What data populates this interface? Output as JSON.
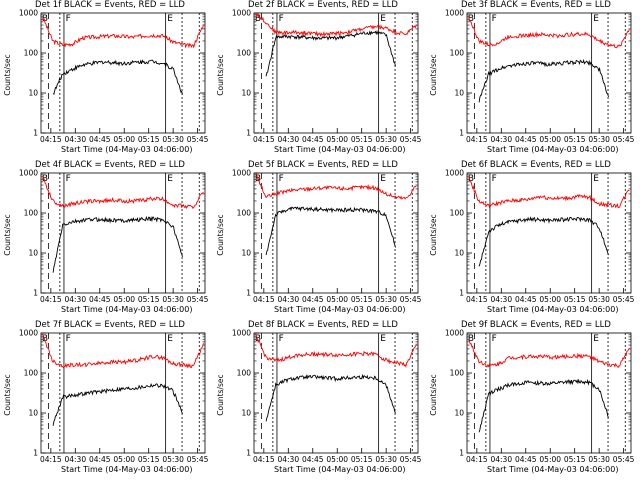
{
  "chart_data": [
    {
      "type": "line",
      "title": "Det 1f BLACK = Events, RED = LLD",
      "xlabel": "Start Time (04-May-03 04:06:00)",
      "ylabel": "Counts/sec",
      "xticks": [
        "04:15",
        "04:30",
        "04:45",
        "05:00",
        "05:15",
        "05:30",
        "05:45"
      ],
      "yticks": [
        "1",
        "10",
        "100",
        "1000"
      ],
      "ylim": [
        1,
        1000
      ],
      "yscale": "log",
      "markers": [
        "B",
        "F",
        "E"
      ],
      "series": [
        {
          "name": "LLD",
          "color": "#ff0000",
          "values": [
            800,
            200,
            160,
            170,
            240,
            250,
            260,
            270,
            260,
            250,
            270,
            280,
            270,
            190,
            160,
            150,
            500
          ]
        },
        {
          "name": "Events",
          "color": "#000000",
          "values": [
            null,
            9,
            30,
            40,
            50,
            55,
            60,
            58,
            55,
            58,
            60,
            62,
            55,
            40,
            8,
            null,
            null
          ]
        }
      ]
    },
    {
      "type": "line",
      "title": "Det 2f BLACK = Events, RED = LLD",
      "xlabel": "Start Time (04-May-03 04:06:00)",
      "ylabel": "Counts/sec",
      "xticks": [
        "04:15",
        "04:30",
        "04:45",
        "05:00",
        "05:15",
        "05:30",
        "05:45"
      ],
      "yticks": [
        "1",
        "10",
        "100",
        "1000"
      ],
      "ylim": [
        1,
        1000
      ],
      "yscale": "log",
      "markers": [
        "B",
        "F",
        "E"
      ],
      "series": [
        {
          "name": "LLD",
          "color": "#ff0000",
          "values": [
            1000,
            600,
            330,
            320,
            330,
            320,
            300,
            300,
            310,
            330,
            370,
            420,
            460,
            420,
            330,
            300,
            500
          ]
        },
        {
          "name": "Events",
          "color": "#000000",
          "values": [
            null,
            22,
            250,
            260,
            255,
            245,
            235,
            235,
            240,
            260,
            290,
            320,
            330,
            280,
            40,
            null,
            null
          ]
        }
      ]
    },
    {
      "type": "line",
      "title": "Det 3f BLACK = Events, RED = LLD",
      "xlabel": "Start Time (04-May-03 04:06:00)",
      "ylabel": "Counts/sec",
      "xticks": [
        "04:15",
        "04:30",
        "04:45",
        "05:00",
        "05:15",
        "05:30",
        "05:45"
      ],
      "yticks": [
        "1",
        "10",
        "100",
        "1000"
      ],
      "ylim": [
        1,
        1000
      ],
      "yscale": "log",
      "markers": [
        "B",
        "F",
        "E"
      ],
      "series": [
        {
          "name": "LLD",
          "color": "#ff0000",
          "values": [
            800,
            200,
            160,
            180,
            260,
            270,
            280,
            290,
            280,
            270,
            290,
            300,
            290,
            200,
            160,
            140,
            400
          ]
        },
        {
          "name": "Events",
          "color": "#000000",
          "values": [
            null,
            6,
            30,
            40,
            48,
            52,
            56,
            55,
            52,
            55,
            58,
            60,
            58,
            40,
            7,
            null,
            null
          ]
        }
      ]
    },
    {
      "type": "line",
      "title": "Det 4f BLACK = Events, RED = LLD",
      "xlabel": "Start Time (04-May-03 04:06:00)",
      "ylabel": "Counts/sec",
      "xticks": [
        "04:15",
        "04:30",
        "04:45",
        "05:00",
        "05:15",
        "05:30",
        "05:45"
      ],
      "yticks": [
        "1",
        "10",
        "100",
        "1000"
      ],
      "ylim": [
        1,
        1000
      ],
      "yscale": "log",
      "markers": [
        "B",
        "F",
        "E"
      ],
      "series": [
        {
          "name": "LLD",
          "color": "#ff0000",
          "values": [
            800,
            200,
            150,
            170,
            190,
            200,
            200,
            210,
            200,
            200,
            210,
            230,
            220,
            160,
            150,
            140,
            350
          ]
        },
        {
          "name": "Events",
          "color": "#000000",
          "values": [
            null,
            3,
            50,
            60,
            65,
            70,
            68,
            66,
            65,
            67,
            70,
            72,
            68,
            45,
            7,
            null,
            null
          ]
        }
      ]
    },
    {
      "type": "line",
      "title": "Det 5f BLACK = Events, RED = LLD",
      "xlabel": "Start Time (04-May-03 04:06:00)",
      "ylabel": "Counts/sec",
      "xticks": [
        "04:15",
        "04:30",
        "04:45",
        "05:00",
        "05:15",
        "05:30",
        "05:45"
      ],
      "yticks": [
        "1",
        "10",
        "100",
        "1000"
      ],
      "ylim": [
        1,
        1000
      ],
      "yscale": "log",
      "markers": [
        "B",
        "F",
        "E"
      ],
      "series": [
        {
          "name": "LLD",
          "color": "#ff0000",
          "values": [
            1000,
            250,
            300,
            350,
            380,
            400,
            420,
            430,
            420,
            410,
            430,
            450,
            420,
            300,
            250,
            230,
            500
          ]
        },
        {
          "name": "Events",
          "color": "#000000",
          "values": [
            null,
            8,
            90,
            120,
            130,
            128,
            125,
            120,
            118,
            120,
            122,
            118,
            110,
            90,
            12,
            null,
            null
          ]
        }
      ]
    },
    {
      "type": "line",
      "title": "Det 6f BLACK = Events, RED = LLD",
      "xlabel": "Start Time (04-May-03 04:06:00)",
      "ylabel": "Counts/sec",
      "xticks": [
        "04:15",
        "04:30",
        "04:45",
        "05:00",
        "05:15",
        "05:30",
        "05:45"
      ],
      "yticks": [
        "1",
        "10",
        "100",
        "1000"
      ],
      "ylim": [
        1,
        1000
      ],
      "yscale": "log",
      "markers": [
        "B",
        "F",
        "E"
      ],
      "series": [
        {
          "name": "LLD",
          "color": "#ff0000",
          "values": [
            800,
            200,
            150,
            180,
            200,
            210,
            220,
            260,
            240,
            230,
            240,
            260,
            250,
            170,
            160,
            150,
            400
          ]
        },
        {
          "name": "Events",
          "color": "#000000",
          "values": [
            null,
            4,
            35,
            50,
            60,
            65,
            70,
            68,
            66,
            68,
            70,
            72,
            68,
            45,
            8,
            null,
            null
          ]
        }
      ]
    },
    {
      "type": "line",
      "title": "Det 7f BLACK = Events, RED = LLD",
      "xlabel": "Start Time (04-May-03 04:06:00)",
      "ylabel": "Counts/sec",
      "xticks": [
        "04:15",
        "04:30",
        "04:45",
        "05:00",
        "05:15",
        "05:30",
        "05:45"
      ],
      "yticks": [
        "1",
        "10",
        "100",
        "1000"
      ],
      "ylim": [
        1,
        1000
      ],
      "yscale": "log",
      "markers": [
        "B",
        "F",
        "E"
      ],
      "series": [
        {
          "name": "LLD",
          "color": "#ff0000",
          "values": [
            900,
            200,
            150,
            160,
            160,
            170,
            180,
            190,
            190,
            200,
            230,
            260,
            240,
            170,
            160,
            150,
            500
          ]
        },
        {
          "name": "Events",
          "color": "#000000",
          "values": [
            null,
            5,
            25,
            28,
            30,
            33,
            35,
            38,
            40,
            42,
            45,
            50,
            48,
            35,
            9,
            null,
            null
          ]
        }
      ]
    },
    {
      "type": "line",
      "title": "Det 8f BLACK = Events, RED = LLD",
      "xlabel": "Start Time (04-May-03 04:06:00)",
      "ylabel": "Counts/sec",
      "xticks": [
        "04:15",
        "04:30",
        "04:45",
        "05:00",
        "05:15",
        "05:30",
        "05:45"
      ],
      "yticks": [
        "1",
        "10",
        "100",
        "1000"
      ],
      "ylim": [
        1,
        1000
      ],
      "yscale": "log",
      "markers": [
        "B",
        "F",
        "E"
      ],
      "series": [
        {
          "name": "LLD",
          "color": "#ff0000",
          "values": [
            900,
            250,
            200,
            230,
            280,
            290,
            300,
            290,
            280,
            290,
            300,
            310,
            290,
            210,
            180,
            160,
            500
          ]
        },
        {
          "name": "Events",
          "color": "#000000",
          "values": [
            null,
            6,
            50,
            65,
            75,
            78,
            80,
            75,
            72,
            75,
            78,
            80,
            75,
            50,
            9,
            null,
            null
          ]
        }
      ]
    },
    {
      "type": "line",
      "title": "Det 9f BLACK = Events, RED = LLD",
      "xlabel": "Start Time (04-May-03 04:06:00)",
      "ylabel": "Counts/sec",
      "xticks": [
        "04:15",
        "04:30",
        "04:45",
        "05:00",
        "05:15",
        "05:30",
        "05:45"
      ],
      "yticks": [
        "1",
        "10",
        "100",
        "1000"
      ],
      "ylim": [
        1,
        1000
      ],
      "yscale": "log",
      "markers": [
        "B",
        "F",
        "E"
      ],
      "series": [
        {
          "name": "LLD",
          "color": "#ff0000",
          "values": [
            700,
            200,
            150,
            170,
            240,
            250,
            260,
            260,
            250,
            250,
            260,
            270,
            260,
            190,
            160,
            150,
            400
          ]
        },
        {
          "name": "Events",
          "color": "#000000",
          "values": [
            null,
            3,
            30,
            40,
            50,
            55,
            58,
            56,
            54,
            56,
            60,
            62,
            58,
            40,
            7,
            null,
            null
          ]
        }
      ]
    }
  ]
}
